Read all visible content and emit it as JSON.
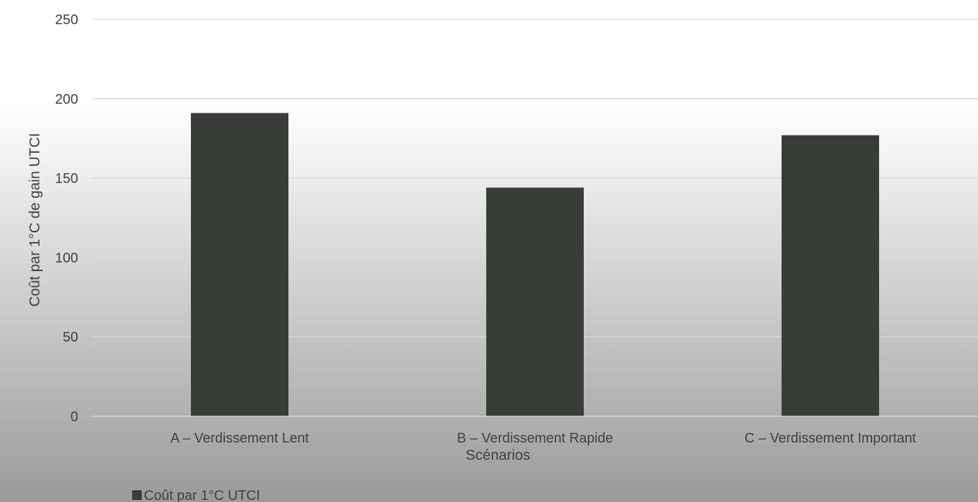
{
  "chart_data": {
    "type": "bar",
    "title": "",
    "xlabel": "Scénarios",
    "ylabel": "Coût par 1°C de gain UTCI",
    "categories": [
      "A – Verdissement Lent",
      "B – Verdissement Rapide",
      "C – Verdissement Important"
    ],
    "series": [
      {
        "name": "Coût par 1°C UTCI",
        "values": [
          191,
          144,
          177
        ],
        "color": "#383d38"
      }
    ],
    "ylim": [
      0,
      250
    ],
    "yticks": [
      0,
      50,
      100,
      150,
      200,
      250
    ],
    "grid": true,
    "legend_position": "bottom-left",
    "gridline_color": "#d9d9d9"
  }
}
